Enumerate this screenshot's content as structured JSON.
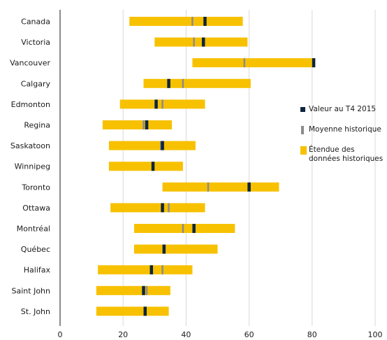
{
  "chart_data": {
    "type": "bar",
    "orientation": "horizontal",
    "title": "",
    "xlabel": "",
    "ylabel": "",
    "xlim": [
      0,
      100
    ],
    "x_ticks": [
      "0",
      "20",
      "40",
      "60",
      "80",
      "100"
    ],
    "grid": true,
    "legend_position": "right",
    "colors": {
      "range": "#f7c100",
      "mean": "#8c8c8c",
      "value": "#0d2540"
    },
    "legend": {
      "value": "Valeur au T4 2015",
      "mean": "Moyenne historique",
      "range_line1": "Étendue des",
      "range_line2": "données historiques"
    },
    "categories": [
      "Canada",
      "Victoria",
      "Vancouver",
      "Calgary",
      "Edmonton",
      "Regina",
      "Saskatoon",
      "Winnipeg",
      "Toronto",
      "Ottawa",
      "Montréal",
      "Québec",
      "Halifax",
      "Saint John",
      "St. John"
    ],
    "range_min": [
      22,
      30,
      42,
      26.5,
      19,
      13.5,
      15.5,
      15.5,
      32.5,
      16,
      23.5,
      23.5,
      12,
      11.5,
      11.5
    ],
    "range_max": [
      58,
      59.5,
      81,
      60.5,
      46,
      35.5,
      43,
      39,
      69.5,
      46,
      55.5,
      50,
      42,
      35,
      34.5
    ],
    "mean": [
      42,
      42.5,
      58.5,
      39,
      32.5,
      26.5,
      32,
      29.5,
      47,
      34.5,
      39,
      33,
      32.5,
      27.5,
      27
    ],
    "value": [
      46,
      45.5,
      80.5,
      34.5,
      30.5,
      27.5,
      32.5,
      29.5,
      60,
      32.5,
      42.5,
      33,
      29,
      26.5,
      27
    ]
  }
}
